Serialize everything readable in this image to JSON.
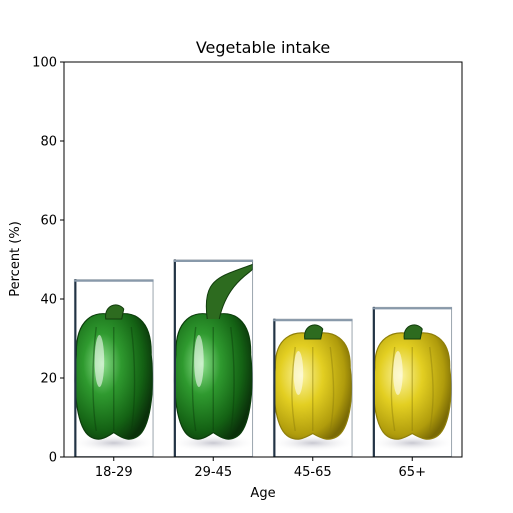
{
  "chart_data": {
    "type": "bar",
    "title": "Vegetable intake",
    "xlabel": "Age",
    "ylabel": "Percent (%)",
    "categories": [
      "18-29",
      "29-45",
      "45-65",
      "65+"
    ],
    "values": [
      45,
      50,
      35,
      38
    ],
    "ylim": [
      0,
      100
    ],
    "yticks": [
      0,
      20,
      40,
      60,
      80,
      100
    ],
    "grid": false,
    "legend": "none",
    "bar_images": [
      "green-bell-pepper",
      "green-bell-pepper",
      "yellow-bell-pepper",
      "yellow-bell-pepper"
    ],
    "colors": {
      "green_pepper": "#1f7a1f",
      "green_pepper_light": "#4cc24c",
      "green_pepper_dark": "#0b3d0b",
      "yellow_pepper": "#d9c21a",
      "yellow_pepper_light": "#f5ea6a",
      "yellow_pepper_dark": "#8f7f0a",
      "stem": "#2d6b1f",
      "bar_edge": "#5a6a78"
    }
  }
}
